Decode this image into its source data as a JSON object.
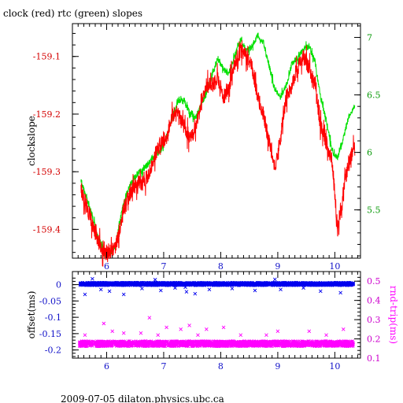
{
  "header": {
    "title": "clock (red) rtc (green) slopes"
  },
  "footer": {
    "text": "2009-07-05  dilaton.physics.ubc.ca"
  },
  "colors": {
    "clock": "#ff0000",
    "rtc": "#00e000",
    "offset": "#0000ee",
    "rndtrip": "#ff00ff"
  },
  "chart_data": [
    {
      "type": "line",
      "ylabel": "clockslope",
      "y2label": "",
      "xlim": [
        5.4,
        10.45
      ],
      "ylim": [
        -159.45,
        -159.043
      ],
      "y2lim": [
        5.08,
        7.12
      ],
      "x_ticks": [
        "6",
        "7",
        "8",
        "9",
        "10"
      ],
      "y_ticks": [
        "-159.1",
        "-159.2",
        "-159.3",
        "-159.4"
      ],
      "y2_ticks": [
        "5.5",
        "6",
        "6.5",
        "7"
      ],
      "series": [
        {
          "name": "clock",
          "axis": "left",
          "x": [
            5.55,
            5.65,
            5.75,
            5.85,
            5.95,
            6.05,
            6.15,
            6.25,
            6.35,
            6.45,
            6.55,
            6.65,
            6.75,
            6.85,
            6.95,
            7.05,
            7.15,
            7.25,
            7.35,
            7.45,
            7.55,
            7.65,
            7.75,
            7.85,
            7.95,
            8.05,
            8.15,
            8.25,
            8.35,
            8.45,
            8.55,
            8.65,
            8.75,
            8.85,
            8.95,
            9.05,
            9.15,
            9.25,
            9.35,
            9.45,
            9.55,
            9.65,
            9.75,
            9.85,
            9.95,
            10.05,
            10.15,
            10.25,
            10.35
          ],
          "y": [
            -159.33,
            -159.36,
            -159.39,
            -159.42,
            -159.44,
            -159.44,
            -159.43,
            -159.39,
            -159.35,
            -159.33,
            -159.32,
            -159.32,
            -159.3,
            -159.27,
            -159.25,
            -159.24,
            -159.2,
            -159.2,
            -159.22,
            -159.24,
            -159.23,
            -159.19,
            -159.15,
            -159.15,
            -159.14,
            -159.17,
            -159.15,
            -159.11,
            -159.09,
            -159.1,
            -159.12,
            -159.17,
            -159.2,
            -159.25,
            -159.29,
            -159.24,
            -159.17,
            -159.15,
            -159.12,
            -159.1,
            -159.12,
            -159.15,
            -159.22,
            -159.25,
            -159.28,
            -159.4,
            -159.33,
            -159.28,
            -159.26
          ]
        },
        {
          "name": "rtc",
          "axis": "right",
          "x": [
            5.55,
            5.65,
            5.75,
            5.85,
            5.95,
            6.05,
            6.15,
            6.25,
            6.35,
            6.45,
            6.55,
            6.65,
            6.75,
            6.85,
            6.95,
            7.05,
            7.15,
            7.25,
            7.35,
            7.45,
            7.55,
            7.65,
            7.75,
            7.85,
            7.95,
            8.05,
            8.15,
            8.25,
            8.35,
            8.45,
            8.55,
            8.65,
            8.75,
            8.85,
            8.95,
            9.05,
            9.15,
            9.25,
            9.35,
            9.45,
            9.55,
            9.65,
            9.75,
            9.85,
            9.95,
            10.05,
            10.15,
            10.25,
            10.35
          ],
          "y": [
            5.75,
            5.6,
            5.45,
            5.25,
            5.15,
            5.12,
            5.18,
            5.45,
            5.65,
            5.75,
            5.82,
            5.85,
            5.92,
            5.98,
            6.02,
            6.12,
            6.3,
            6.45,
            6.45,
            6.35,
            6.3,
            6.4,
            6.52,
            6.68,
            6.82,
            6.72,
            6.68,
            6.85,
            6.98,
            6.88,
            6.92,
            7.02,
            6.95,
            6.75,
            6.55,
            6.48,
            6.58,
            6.78,
            6.82,
            6.9,
            6.92,
            6.8,
            6.48,
            6.28,
            6.02,
            5.95,
            6.12,
            6.32,
            6.4
          ]
        }
      ]
    },
    {
      "type": "scatter",
      "ylabel": "offset(ms)",
      "y2label": "rnd-trip(ms)",
      "xlim": [
        5.4,
        10.45
      ],
      "ylim": [
        -0.225,
        0.04
      ],
      "y2lim": [
        0.1,
        0.55
      ],
      "x_ticks": [
        "6",
        "7",
        "8",
        "9",
        "10"
      ],
      "y_ticks": [
        "0",
        "-0.05",
        "-0.1",
        "-0.15",
        "-0.2"
      ],
      "y2_ticks": [
        "0.5",
        "0.4",
        "0.3",
        "0.2",
        "0.1"
      ],
      "series": [
        {
          "name": "offset",
          "axis": "left",
          "band": [
            -0.003,
            0.007
          ],
          "outliers_x": [
            5.62,
            5.9,
            6.05,
            6.3,
            6.62,
            6.95,
            7.2,
            7.4,
            7.55,
            7.8,
            8.2,
            8.6,
            9.05,
            9.45,
            9.75,
            10.1,
            5.75,
            6.85,
            7.38,
            8.95
          ],
          "outliers_y": [
            -0.03,
            -0.015,
            -0.02,
            -0.03,
            -0.012,
            -0.018,
            -0.01,
            -0.022,
            -0.028,
            -0.015,
            -0.012,
            -0.018,
            -0.015,
            -0.01,
            -0.02,
            -0.025,
            0.018,
            0.015,
            -0.008,
            0.016
          ]
        },
        {
          "name": "rnd-trip",
          "axis": "right",
          "band": [
            0.16,
            0.19
          ],
          "outliers_x": [
            5.62,
            5.95,
            6.1,
            6.3,
            6.6,
            6.9,
            7.05,
            7.3,
            7.6,
            7.75,
            8.05,
            8.35,
            8.8,
            9.0,
            9.55,
            9.85,
            10.15,
            10.3,
            6.75,
            7.45
          ],
          "outliers_y": [
            0.22,
            0.28,
            0.24,
            0.23,
            0.23,
            0.22,
            0.26,
            0.25,
            0.22,
            0.25,
            0.26,
            0.22,
            0.22,
            0.24,
            0.24,
            0.22,
            0.25,
            0.48,
            0.31,
            0.27
          ]
        }
      ]
    }
  ]
}
